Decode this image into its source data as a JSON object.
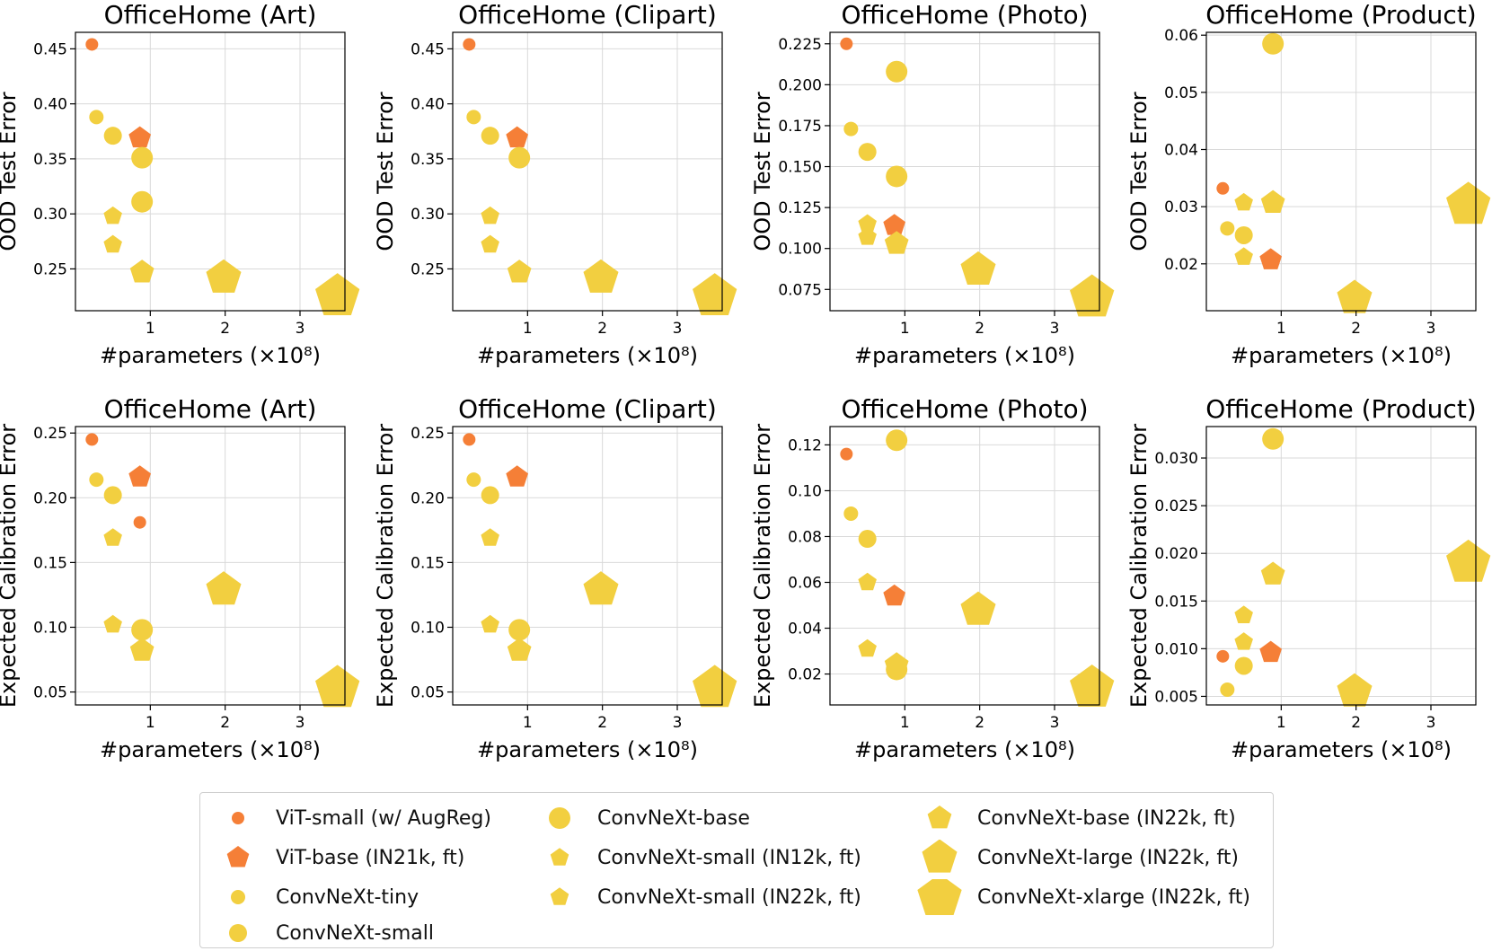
{
  "colors": {
    "vit": "#f57f37",
    "convnext": "#f2cf40",
    "grid": "#d9d9d9"
  },
  "legend": [
    {
      "key": "vit_small",
      "label": "ViT-small (w/ AugReg)",
      "shape": "circle",
      "size": 7,
      "color": "#f57f37"
    },
    {
      "key": "vit_base",
      "label": "ViT-base (IN21k, ft)",
      "shape": "pentagon",
      "size": 12,
      "color": "#f57f37"
    },
    {
      "key": "cnx_tiny",
      "label": "ConvNeXt-tiny",
      "shape": "circle",
      "size": 8,
      "color": "#f2cf40"
    },
    {
      "key": "cnx_small",
      "label": "ConvNeXt-small",
      "shape": "circle",
      "size": 10,
      "color": "#f2cf40"
    },
    {
      "key": "cnx_base",
      "label": "ConvNeXt-base",
      "shape": "circle",
      "size": 12,
      "color": "#f2cf40"
    },
    {
      "key": "cnx_small_12k",
      "label": "ConvNeXt-small (IN12k, ft)",
      "shape": "pentagon",
      "size": 10,
      "color": "#f2cf40"
    },
    {
      "key": "cnx_small_22k",
      "label": "ConvNeXt-small (IN22k, ft)",
      "shape": "pentagon",
      "size": 10,
      "color": "#f2cf40"
    },
    {
      "key": "cnx_base_22k",
      "label": "ConvNeXt-base (IN22k, ft)",
      "shape": "pentagon",
      "size": 13,
      "color": "#f2cf40"
    },
    {
      "key": "cnx_large_22k",
      "label": "ConvNeXt-large (IN22k, ft)",
      "shape": "pentagon",
      "size": 19,
      "color": "#f2cf40"
    },
    {
      "key": "cnx_xlarge_22k",
      "label": "ConvNeXt-xlarge (IN22k, ft)",
      "shape": "pentagon",
      "size": 24,
      "color": "#f2cf40"
    }
  ],
  "chart_data": [
    {
      "type": "scatter",
      "title": "OfficeHome (Art)",
      "xlabel": "#parameters (×10⁸)",
      "ylabel": "OOD Test Error",
      "xlim": [
        0.0,
        3.6
      ],
      "ylim": [
        0.212,
        0.465
      ],
      "xticks": [
        1,
        2,
        3
      ],
      "xtick_labels": [
        "1",
        "2",
        "3"
      ],
      "yticks": [
        0.25,
        0.3,
        0.35,
        0.4,
        0.45
      ],
      "ytick_labels": [
        "0.25",
        "0.30",
        "0.35",
        "0.40",
        "0.45"
      ],
      "points": [
        {
          "model": "vit_small",
          "x": 0.22,
          "y": 0.454
        },
        {
          "model": "vit_base",
          "x": 0.86,
          "y": 0.369
        },
        {
          "model": "cnx_tiny",
          "x": 0.28,
          "y": 0.388
        },
        {
          "model": "cnx_small",
          "x": 0.5,
          "y": 0.371
        },
        {
          "model": "cnx_base",
          "x": 0.89,
          "y": 0.311
        },
        {
          "model": "cnx_small_12k",
          "x": 0.5,
          "y": 0.298
        },
        {
          "model": "cnx_small_22k",
          "x": 0.5,
          "y": 0.272
        },
        {
          "model": "cnx_base_22k",
          "x": 0.89,
          "y": 0.247
        },
        {
          "model": "cnx_large_22k",
          "x": 1.98,
          "y": 0.242
        },
        {
          "model": "cnx_xlarge_22k",
          "x": 3.5,
          "y": 0.225
        },
        {
          "model": "cnx_base",
          "x": 0.89,
          "y": 0.351
        }
      ]
    },
    {
      "type": "scatter",
      "title": "OfficeHome (Clipart)",
      "xlabel": "#parameters (×10⁸)",
      "ylabel": "OOD Test Error",
      "xlim": [
        0.0,
        3.6
      ],
      "ylim": [
        0.212,
        0.465
      ],
      "xticks": [
        1,
        2,
        3
      ],
      "xtick_labels": [
        "1",
        "2",
        "3"
      ],
      "yticks": [
        0.25,
        0.3,
        0.35,
        0.4,
        0.45
      ],
      "ytick_labels": [
        "0.25",
        "0.30",
        "0.35",
        "0.40",
        "0.45"
      ],
      "points": [
        {
          "model": "vit_small",
          "x": 0.22,
          "y": 0.454
        },
        {
          "model": "vit_base",
          "x": 0.86,
          "y": 0.369
        },
        {
          "model": "cnx_tiny",
          "x": 0.28,
          "y": 0.388
        },
        {
          "model": "cnx_small",
          "x": 0.5,
          "y": 0.371
        },
        {
          "model": "cnx_base",
          "x": 0.89,
          "y": 0.351
        },
        {
          "model": "cnx_small_12k",
          "x": 0.5,
          "y": 0.298
        },
        {
          "model": "cnx_small_22k",
          "x": 0.5,
          "y": 0.272
        },
        {
          "model": "cnx_base_22k",
          "x": 0.89,
          "y": 0.247
        },
        {
          "model": "cnx_large_22k",
          "x": 1.98,
          "y": 0.242
        },
        {
          "model": "cnx_xlarge_22k",
          "x": 3.5,
          "y": 0.225
        }
      ]
    },
    {
      "type": "scatter",
      "title": "OfficeHome (Photo)",
      "xlabel": "#parameters (×10⁸)",
      "ylabel": "OOD Test Error",
      "xlim": [
        0.0,
        3.6
      ],
      "ylim": [
        0.062,
        0.232
      ],
      "xticks": [
        1,
        2,
        3
      ],
      "xtick_labels": [
        "1",
        "2",
        "3"
      ],
      "yticks": [
        0.075,
        0.1,
        0.125,
        0.15,
        0.175,
        0.2,
        0.225
      ],
      "ytick_labels": [
        "0.075",
        "0.100",
        "0.125",
        "0.150",
        "0.175",
        "0.200",
        "0.225"
      ],
      "points": [
        {
          "model": "vit_small",
          "x": 0.22,
          "y": 0.225
        },
        {
          "model": "cnx_base",
          "x": 0.89,
          "y": 0.208
        },
        {
          "model": "cnx_tiny",
          "x": 0.28,
          "y": 0.173
        },
        {
          "model": "cnx_small",
          "x": 0.5,
          "y": 0.159
        },
        {
          "model": "cnx_base",
          "x": 0.89,
          "y": 0.144
        },
        {
          "model": "cnx_small_12k",
          "x": 0.5,
          "y": 0.115
        },
        {
          "model": "cnx_small_22k",
          "x": 0.5,
          "y": 0.107
        },
        {
          "model": "vit_base",
          "x": 0.86,
          "y": 0.114
        },
        {
          "model": "cnx_base_22k",
          "x": 0.89,
          "y": 0.103
        },
        {
          "model": "cnx_large_22k",
          "x": 1.98,
          "y": 0.087
        },
        {
          "model": "cnx_xlarge_22k",
          "x": 3.5,
          "y": 0.07
        }
      ]
    },
    {
      "type": "scatter",
      "title": "OfficeHome (Product)",
      "xlabel": "#parameters (×10⁸)",
      "ylabel": "OOD Test Error",
      "xlim": [
        0.0,
        3.6
      ],
      "ylim": [
        0.0118,
        0.0605
      ],
      "xticks": [
        1,
        2,
        3
      ],
      "xtick_labels": [
        "1",
        "2",
        "3"
      ],
      "yticks": [
        0.02,
        0.03,
        0.04,
        0.05,
        0.06
      ],
      "ytick_labels": [
        "0.02",
        "0.03",
        "0.04",
        "0.05",
        "0.06"
      ],
      "points": [
        {
          "model": "cnx_base",
          "x": 0.89,
          "y": 0.0585
        },
        {
          "model": "vit_small",
          "x": 0.22,
          "y": 0.0332
        },
        {
          "model": "cnx_small_12k",
          "x": 0.5,
          "y": 0.0307
        },
        {
          "model": "cnx_base_22k",
          "x": 0.89,
          "y": 0.0307
        },
        {
          "model": "cnx_xlarge_22k",
          "x": 3.5,
          "y": 0.0303
        },
        {
          "model": "cnx_tiny",
          "x": 0.28,
          "y": 0.0262
        },
        {
          "model": "cnx_small",
          "x": 0.5,
          "y": 0.025
        },
        {
          "model": "cnx_small_22k",
          "x": 0.5,
          "y": 0.0212
        },
        {
          "model": "vit_base",
          "x": 0.86,
          "y": 0.0207
        },
        {
          "model": "cnx_large_22k",
          "x": 1.98,
          "y": 0.014
        }
      ]
    },
    {
      "type": "scatter",
      "title": "OfficeHome (Art)",
      "xlabel": "#parameters (×10⁸)",
      "ylabel": "Expected Calibration Error",
      "xlim": [
        0.0,
        3.6
      ],
      "ylim": [
        0.04,
        0.255
      ],
      "xticks": [
        1,
        2,
        3
      ],
      "xtick_labels": [
        "1",
        "2",
        "3"
      ],
      "yticks": [
        0.05,
        0.1,
        0.15,
        0.2,
        0.25
      ],
      "ytick_labels": [
        "0.05",
        "0.10",
        "0.15",
        "0.20",
        "0.25"
      ],
      "points": [
        {
          "model": "vit_small",
          "x": 0.22,
          "y": 0.245
        },
        {
          "model": "vit_base",
          "x": 0.86,
          "y": 0.216
        },
        {
          "model": "cnx_tiny",
          "x": 0.28,
          "y": 0.214
        },
        {
          "model": "cnx_small",
          "x": 0.5,
          "y": 0.202
        },
        {
          "model": "vit_small",
          "x": 0.86,
          "y": 0.181
        },
        {
          "model": "cnx_small_12k",
          "x": 0.5,
          "y": 0.169
        },
        {
          "model": "cnx_large_22k",
          "x": 1.98,
          "y": 0.129
        },
        {
          "model": "cnx_small_22k",
          "x": 0.5,
          "y": 0.102
        },
        {
          "model": "cnx_base",
          "x": 0.89,
          "y": 0.098
        },
        {
          "model": "cnx_base_22k",
          "x": 0.89,
          "y": 0.082
        },
        {
          "model": "cnx_xlarge_22k",
          "x": 3.5,
          "y": 0.053
        }
      ]
    },
    {
      "type": "scatter",
      "title": "OfficeHome (Clipart)",
      "xlabel": "#parameters (×10⁸)",
      "ylabel": "Expected Calibration Error",
      "xlim": [
        0.0,
        3.6
      ],
      "ylim": [
        0.04,
        0.255
      ],
      "xticks": [
        1,
        2,
        3
      ],
      "xtick_labels": [
        "1",
        "2",
        "3"
      ],
      "yticks": [
        0.05,
        0.1,
        0.15,
        0.2,
        0.25
      ],
      "ytick_labels": [
        "0.05",
        "0.10",
        "0.15",
        "0.20",
        "0.25"
      ],
      "points": [
        {
          "model": "vit_small",
          "x": 0.22,
          "y": 0.245
        },
        {
          "model": "vit_base",
          "x": 0.86,
          "y": 0.216
        },
        {
          "model": "cnx_tiny",
          "x": 0.28,
          "y": 0.214
        },
        {
          "model": "cnx_small",
          "x": 0.5,
          "y": 0.202
        },
        {
          "model": "cnx_small_12k",
          "x": 0.5,
          "y": 0.169
        },
        {
          "model": "cnx_large_22k",
          "x": 1.98,
          "y": 0.129
        },
        {
          "model": "cnx_small_22k",
          "x": 0.5,
          "y": 0.102
        },
        {
          "model": "cnx_base",
          "x": 0.89,
          "y": 0.098
        },
        {
          "model": "cnx_base_22k",
          "x": 0.89,
          "y": 0.082
        },
        {
          "model": "cnx_xlarge_22k",
          "x": 3.5,
          "y": 0.053
        }
      ]
    },
    {
      "type": "scatter",
      "title": "OfficeHome (Photo)",
      "xlabel": "#parameters (×10⁸)",
      "ylabel": "Expected Calibration Error",
      "xlim": [
        0.0,
        3.6
      ],
      "ylim": [
        0.0065,
        0.128
      ],
      "xticks": [
        1,
        2,
        3
      ],
      "xtick_labels": [
        "1",
        "2",
        "3"
      ],
      "yticks": [
        0.02,
        0.04,
        0.06,
        0.08,
        0.1,
        0.12
      ],
      "ytick_labels": [
        "0.02",
        "0.04",
        "0.06",
        "0.08",
        "0.10",
        "0.12"
      ],
      "points": [
        {
          "model": "cnx_base",
          "x": 0.89,
          "y": 0.122
        },
        {
          "model": "vit_small",
          "x": 0.22,
          "y": 0.116
        },
        {
          "model": "cnx_tiny",
          "x": 0.28,
          "y": 0.09
        },
        {
          "model": "cnx_small",
          "x": 0.5,
          "y": 0.079
        },
        {
          "model": "cnx_small_12k",
          "x": 0.5,
          "y": 0.06
        },
        {
          "model": "vit_base",
          "x": 0.86,
          "y": 0.054
        },
        {
          "model": "cnx_large_22k",
          "x": 1.98,
          "y": 0.048
        },
        {
          "model": "cnx_small_22k",
          "x": 0.5,
          "y": 0.031
        },
        {
          "model": "cnx_base_22k",
          "x": 0.89,
          "y": 0.024
        },
        {
          "model": "cnx_base",
          "x": 0.89,
          "y": 0.022
        },
        {
          "model": "cnx_xlarge_22k",
          "x": 3.5,
          "y": 0.014
        }
      ]
    },
    {
      "type": "scatter",
      "title": "OfficeHome (Product)",
      "xlabel": "#parameters (×10⁸)",
      "ylabel": "Expected Calibration Error",
      "xlim": [
        0.0,
        3.6
      ],
      "ylim": [
        0.0041,
        0.0333
      ],
      "xticks": [
        1,
        2,
        3
      ],
      "xtick_labels": [
        "1",
        "2",
        "3"
      ],
      "yticks": [
        0.005,
        0.01,
        0.015,
        0.02,
        0.025,
        0.03
      ],
      "ytick_labels": [
        "0.005",
        "0.010",
        "0.015",
        "0.020",
        "0.025",
        "0.030"
      ],
      "points": [
        {
          "model": "cnx_base",
          "x": 0.89,
          "y": 0.032
        },
        {
          "model": "cnx_xlarge_22k",
          "x": 3.5,
          "y": 0.019
        },
        {
          "model": "cnx_base_22k",
          "x": 0.89,
          "y": 0.0178
        },
        {
          "model": "cnx_small_12k",
          "x": 0.5,
          "y": 0.0135
        },
        {
          "model": "cnx_small_22k",
          "x": 0.5,
          "y": 0.0107
        },
        {
          "model": "vit_base",
          "x": 0.86,
          "y": 0.0096
        },
        {
          "model": "vit_small",
          "x": 0.22,
          "y": 0.0092
        },
        {
          "model": "cnx_small",
          "x": 0.5,
          "y": 0.0082
        },
        {
          "model": "cnx_tiny",
          "x": 0.28,
          "y": 0.0057
        },
        {
          "model": "cnx_large_22k",
          "x": 1.98,
          "y": 0.0055
        }
      ]
    }
  ]
}
